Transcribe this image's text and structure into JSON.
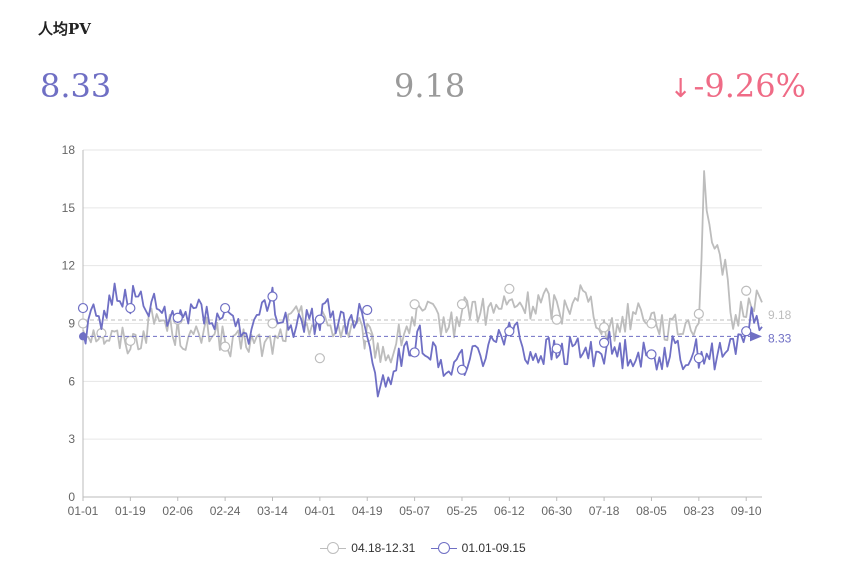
{
  "header": {
    "title": "人均PV",
    "current_value": "8.33",
    "compare_value": "9.18",
    "change_arrow": "↓",
    "change_value": "-9.26%"
  },
  "colors": {
    "current": "#6f6fc4",
    "compare": "#bdbdbd",
    "negative": "#ef6b86",
    "grid": "#e6e6e6",
    "axis_text": "#666666"
  },
  "chart_data": {
    "type": "line",
    "title": "",
    "xlabel": "",
    "ylabel": "",
    "ylim": [
      0,
      18
    ],
    "yticks": [
      0,
      3,
      6,
      9,
      12,
      15,
      18
    ],
    "x_tick_labels": [
      "01-01",
      "01-19",
      "02-06",
      "02-24",
      "03-14",
      "04-01",
      "04-19",
      "05-07",
      "05-25",
      "06-12",
      "06-30",
      "07-18",
      "08-05",
      "08-23",
      "09-10"
    ],
    "x_tick_interval_days": 18,
    "num_points": 259,
    "grid": true,
    "legend_position": "bottom",
    "series": [
      {
        "name": "04.18-12.31",
        "role": "compare",
        "average": 9.18,
        "average_label": "9.18",
        "anchors": [
          [
            0,
            8.8
          ],
          [
            6,
            8.6
          ],
          [
            12,
            8.2
          ],
          [
            20,
            8.1
          ],
          [
            28,
            9.4
          ],
          [
            36,
            8.5
          ],
          [
            42,
            8.1
          ],
          [
            50,
            8.8
          ],
          [
            56,
            7.5
          ],
          [
            62,
            8.2
          ],
          [
            68,
            7.8
          ],
          [
            74,
            8.1
          ],
          [
            80,
            9.3
          ],
          [
            86,
            9.2
          ],
          [
            92,
            9.0
          ],
          [
            98,
            8.8
          ],
          [
            104,
            8.6
          ],
          [
            110,
            8.0
          ],
          [
            116,
            7.3
          ],
          [
            122,
            8.6
          ],
          [
            128,
            9.5
          ],
          [
            134,
            9.3
          ],
          [
            140,
            8.8
          ],
          [
            146,
            10.0
          ],
          [
            152,
            9.5
          ],
          [
            158,
            9.8
          ],
          [
            164,
            10.0
          ],
          [
            170,
            9.9
          ],
          [
            176,
            10.2
          ],
          [
            182,
            9.6
          ],
          [
            188,
            10.8
          ],
          [
            194,
            9.8
          ],
          [
            200,
            8.4
          ],
          [
            206,
            9.3
          ],
          [
            212,
            9.8
          ],
          [
            218,
            9.2
          ],
          [
            224,
            8.6
          ],
          [
            230,
            9.0
          ],
          [
            234,
            9.2
          ],
          [
            236,
            16.5
          ],
          [
            240,
            12.3
          ],
          [
            244,
            12.3
          ],
          [
            246,
            8.8
          ],
          [
            250,
            9.5
          ],
          [
            254,
            10.4
          ],
          [
            258,
            10.0
          ]
        ],
        "markers": [
          [
            0,
            9.0
          ],
          [
            7,
            8.5
          ],
          [
            18,
            8.1
          ],
          [
            36,
            9.2
          ],
          [
            54,
            7.8
          ],
          [
            72,
            9.0
          ],
          [
            90,
            7.2
          ],
          [
            108,
            8.3
          ],
          [
            126,
            10.0
          ],
          [
            144,
            10.0
          ],
          [
            162,
            10.8
          ],
          [
            180,
            9.2
          ],
          [
            198,
            8.8
          ],
          [
            216,
            9.0
          ],
          [
            234,
            9.5
          ],
          [
            252,
            10.7
          ]
        ]
      },
      {
        "name": "01.01-09.15",
        "role": "current",
        "average": 8.33,
        "average_label": "8.33",
        "anchors": [
          [
            0,
            8.4
          ],
          [
            4,
            9.8
          ],
          [
            8,
            9.2
          ],
          [
            12,
            10.6
          ],
          [
            16,
            10.2
          ],
          [
            20,
            10.3
          ],
          [
            24,
            9.6
          ],
          [
            28,
            9.8
          ],
          [
            32,
            9.2
          ],
          [
            36,
            9.2
          ],
          [
            40,
            9.5
          ],
          [
            44,
            10.0
          ],
          [
            48,
            9.5
          ],
          [
            52,
            9.0
          ],
          [
            56,
            9.8
          ],
          [
            60,
            8.4
          ],
          [
            64,
            8.7
          ],
          [
            68,
            9.4
          ],
          [
            72,
            10.2
          ],
          [
            76,
            9.2
          ],
          [
            80,
            8.8
          ],
          [
            84,
            9.0
          ],
          [
            88,
            9.1
          ],
          [
            92,
            9.7
          ],
          [
            96,
            9.2
          ],
          [
            100,
            9.0
          ],
          [
            104,
            9.5
          ],
          [
            108,
            9.0
          ],
          [
            112,
            5.5
          ],
          [
            116,
            6.4
          ],
          [
            120,
            7.0
          ],
          [
            124,
            7.8
          ],
          [
            128,
            8.4
          ],
          [
            132,
            7.4
          ],
          [
            136,
            7.1
          ],
          [
            140,
            6.8
          ],
          [
            144,
            7.0
          ],
          [
            148,
            7.2
          ],
          [
            152,
            7.2
          ],
          [
            156,
            8.4
          ],
          [
            160,
            8.7
          ],
          [
            164,
            8.8
          ],
          [
            168,
            7.5
          ],
          [
            172,
            7.4
          ],
          [
            176,
            7.6
          ],
          [
            180,
            7.4
          ],
          [
            184,
            7.5
          ],
          [
            188,
            7.8
          ],
          [
            192,
            7.4
          ],
          [
            196,
            7.6
          ],
          [
            200,
            7.8
          ],
          [
            204,
            7.4
          ],
          [
            208,
            7.6
          ],
          [
            212,
            7.3
          ],
          [
            216,
            7.2
          ],
          [
            220,
            7.4
          ],
          [
            224,
            7.6
          ],
          [
            228,
            7.3
          ],
          [
            232,
            7.4
          ],
          [
            236,
            7.6
          ],
          [
            240,
            7.2
          ],
          [
            244,
            7.4
          ],
          [
            248,
            8.0
          ],
          [
            252,
            8.8
          ],
          [
            255,
            9.2
          ],
          [
            258,
            9.4
          ]
        ],
        "markers": [
          [
            0,
            9.8
          ],
          [
            18,
            9.8
          ],
          [
            36,
            9.3
          ],
          [
            54,
            9.8
          ],
          [
            72,
            10.4
          ],
          [
            90,
            9.2
          ],
          [
            108,
            9.7
          ],
          [
            126,
            7.5
          ],
          [
            144,
            6.6
          ],
          [
            162,
            8.6
          ],
          [
            180,
            7.7
          ],
          [
            198,
            8.0
          ],
          [
            216,
            7.4
          ],
          [
            234,
            7.2
          ],
          [
            252,
            8.6
          ]
        ],
        "start_marker": [
          0,
          8.33
        ]
      }
    ]
  }
}
